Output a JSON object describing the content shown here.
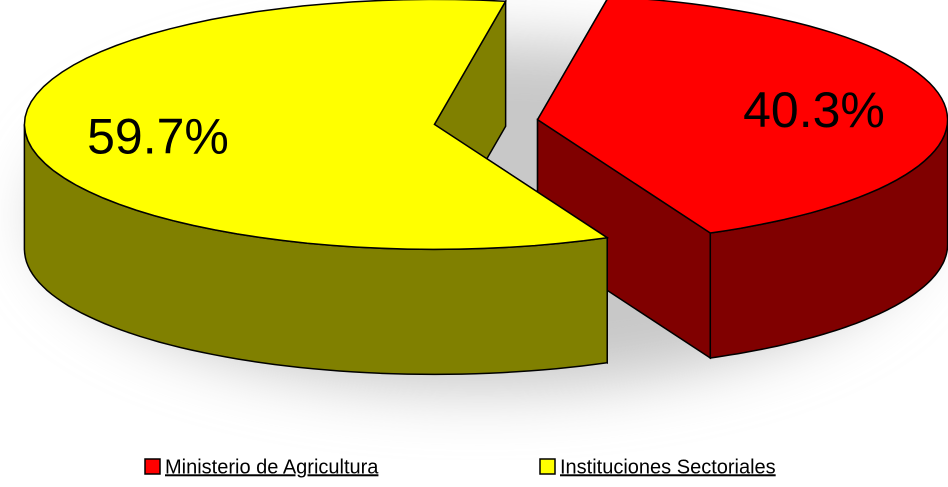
{
  "chart_data": {
    "type": "pie3d",
    "categories": [
      "Ministerio de Agricultura",
      "Instituciones Sectoriales"
    ],
    "values": [
      40.3,
      59.7
    ],
    "value_labels": [
      "40.3%",
      "59.7%"
    ],
    "colors": [
      "#ff0000",
      "#ffff00"
    ],
    "legend": "bottom"
  }
}
